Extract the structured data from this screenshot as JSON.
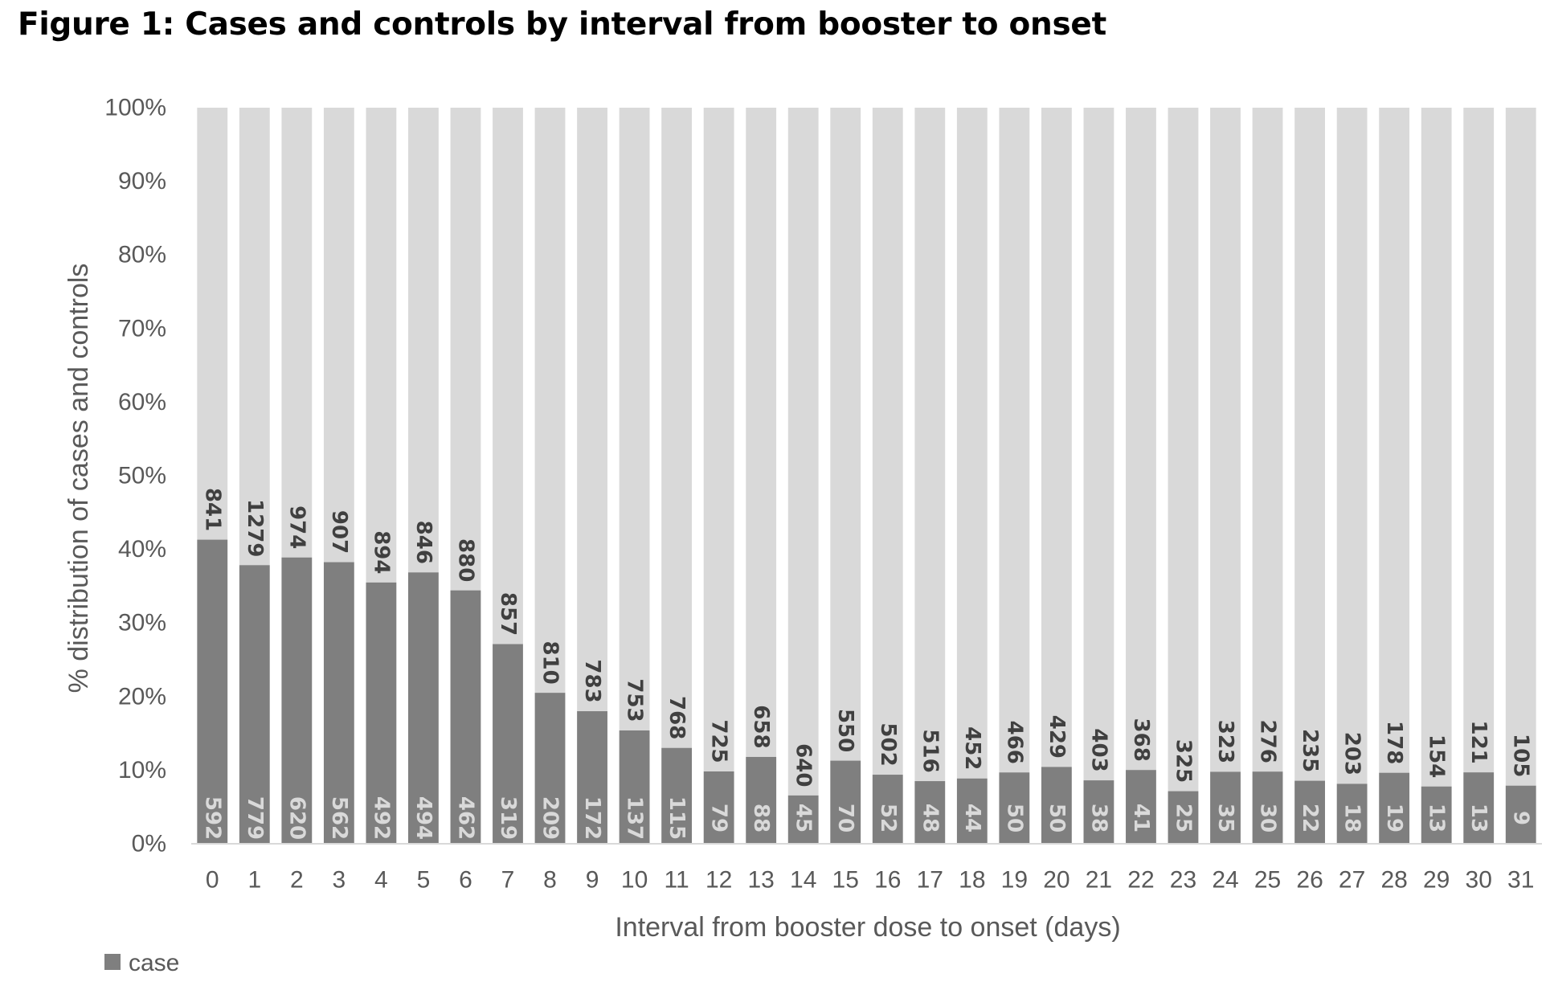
{
  "title": "Figure 1: Cases and controls by interval from booster to onset",
  "chart_data": {
    "type": "bar",
    "stacking": "percent",
    "xlabel": "Interval from booster dose to onset (days)",
    "ylabel": "% distribution of cases and controls",
    "ylim": [
      0,
      100
    ],
    "y_ticks": [
      "0%",
      "10%",
      "20%",
      "30%",
      "40%",
      "50%",
      "60%",
      "70%",
      "80%",
      "90%",
      "100%"
    ],
    "categories": [
      "0",
      "1",
      "2",
      "3",
      "4",
      "5",
      "6",
      "7",
      "8",
      "9",
      "10",
      "11",
      "12",
      "13",
      "14",
      "15",
      "16",
      "17",
      "18",
      "19",
      "20",
      "21",
      "22",
      "23",
      "24",
      "25",
      "26",
      "27",
      "28",
      "29",
      "30",
      "31"
    ],
    "series": [
      {
        "name": "case",
        "color": "#7f7f7f",
        "values": [
          592,
          779,
          620,
          562,
          492,
          494,
          462,
          319,
          209,
          172,
          137,
          115,
          79,
          88,
          45,
          70,
          52,
          48,
          44,
          50,
          50,
          38,
          41,
          25,
          35,
          30,
          22,
          18,
          19,
          13,
          13,
          9
        ]
      },
      {
        "color": "#d9d9d9",
        "values": [
          841,
          1279,
          974,
          907,
          894,
          846,
          880,
          857,
          810,
          783,
          753,
          768,
          725,
          658,
          640,
          550,
          502,
          516,
          452,
          466,
          429,
          403,
          368,
          325,
          323,
          276,
          235,
          203,
          178,
          154,
          121,
          105
        ]
      }
    ],
    "legend": {
      "position": "bottom-left",
      "items": [
        "case"
      ]
    },
    "grid": false
  }
}
